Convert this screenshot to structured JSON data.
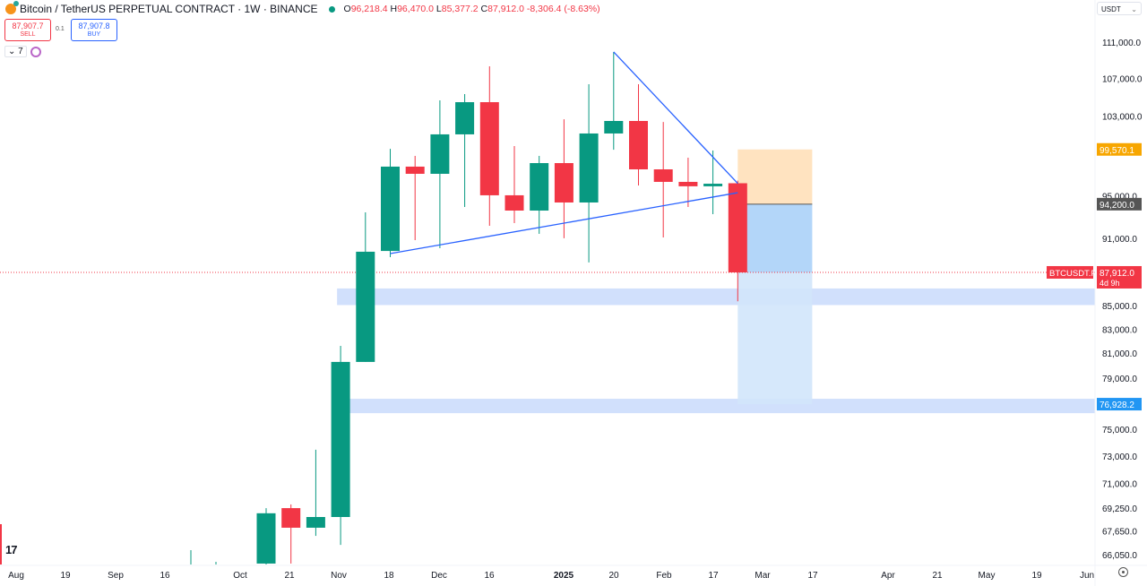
{
  "header": {
    "symbol_title": "Bitcoin / TetherUS PERPETUAL CONTRACT · 1W · BINANCE",
    "ohlc": {
      "o_label": "O",
      "o": "96,218.4",
      "h_label": "H",
      "h": "96,470.0",
      "l_label": "L",
      "l": "85,377.2",
      "c_label": "C",
      "c": "87,912.0",
      "change": "-8,306.4 (-8.63%)"
    },
    "sell_price": "87,907.7",
    "sell_label": "SELL",
    "buy_price": "87,907.8",
    "buy_label": "BUY",
    "spread": "0.1",
    "indicators_count": "7",
    "currency": "USDT"
  },
  "colors": {
    "up": "#089981",
    "down": "#f23645",
    "trendline": "#2962ff",
    "zone": "#c9dafc",
    "target": "#ffe3c0",
    "stop": "#b3d6f9",
    "stop_light": "#d2e6fb"
  },
  "chart_data": {
    "type": "candlestick",
    "symbol": "BTCUSDT.P",
    "interval": "1W",
    "y_scale": "log",
    "ylim": [
      65300,
      112500
    ],
    "y_ticks": [
      "111,000.0",
      "107,000.0",
      "103,000.0",
      "95,000.0",
      "91,000.0",
      "85,000.0",
      "83,000.0",
      "81,000.0",
      "79,000.0",
      "75,000.0",
      "73,000.0",
      "71,000.0",
      "69,250.0",
      "67,650.0",
      "66,050.0"
    ],
    "y_tick_values": [
      111000,
      107000,
      103000,
      95000,
      91000,
      85000,
      83000,
      81000,
      79000,
      75000,
      73000,
      71000,
      69250,
      67650,
      66050
    ],
    "x_ticks": [
      "Aug",
      "19",
      "Sep",
      "16",
      "Oct",
      "21",
      "Nov",
      "18",
      "Dec",
      "16",
      "2025",
      "20",
      "Feb",
      "17",
      "Mar",
      "17",
      "Apr",
      "21",
      "May",
      "19",
      "Jun"
    ],
    "candles": [
      {
        "t": "2024-10-14",
        "o": 65460,
        "h": 69240,
        "l": 65000,
        "c": 68880
      },
      {
        "t": "2024-10-21",
        "o": 69240,
        "h": 69500,
        "l": 65460,
        "c": 67880
      },
      {
        "t": "2024-10-28",
        "o": 67880,
        "h": 73460,
        "l": 67320,
        "c": 68620
      },
      {
        "t": "2024-11-04",
        "o": 68620,
        "h": 81610,
        "l": 66710,
        "c": 80290
      },
      {
        "t": "2024-11-11",
        "o": 80290,
        "h": 93420,
        "l": 80290,
        "c": 89770
      },
      {
        "t": "2024-11-18",
        "o": 89840,
        "h": 99630,
        "l": 89280,
        "c": 97850
      },
      {
        "t": "2024-11-25",
        "o": 97850,
        "h": 98920,
        "l": 90830,
        "c": 97140
      },
      {
        "t": "2024-12-02",
        "o": 97140,
        "h": 104640,
        "l": 90090,
        "c": 101100
      },
      {
        "t": "2024-12-09",
        "o": 101100,
        "h": 105310,
        "l": 93930,
        "c": 104450
      },
      {
        "t": "2024-12-16",
        "o": 104450,
        "h": 108310,
        "l": 92160,
        "c": 95050
      },
      {
        "t": "2024-12-23",
        "o": 95050,
        "h": 99910,
        "l": 92410,
        "c": 93590
      },
      {
        "t": "2024-12-30",
        "o": 93590,
        "h": 98920,
        "l": 91410,
        "c": 98200
      },
      {
        "t": "2025-01-06",
        "o": 98200,
        "h": 102660,
        "l": 91000,
        "c": 94360
      },
      {
        "t": "2025-01-13",
        "o": 94360,
        "h": 106370,
        "l": 88800,
        "c": 101190
      },
      {
        "t": "2025-01-20",
        "o": 101190,
        "h": 109900,
        "l": 99540,
        "c": 102480
      },
      {
        "t": "2025-01-27",
        "o": 102480,
        "h": 106370,
        "l": 96000,
        "c": 97580
      },
      {
        "t": "2025-02-03",
        "o": 97580,
        "h": 102380,
        "l": 91080,
        "c": 96350
      },
      {
        "t": "2025-02-10",
        "o": 96350,
        "h": 98740,
        "l": 93930,
        "c": 95920
      },
      {
        "t": "2025-02-17",
        "o": 95920,
        "h": 99460,
        "l": 93250,
        "c": 96170
      },
      {
        "t": "2025-02-24",
        "o": 96218.4,
        "h": 96470.0,
        "l": 85377.2,
        "c": 87912.0
      }
    ],
    "trendlines": [
      {
        "from": {
          "t": "2024-11-18",
          "p": 89600
        },
        "to": {
          "t": "2025-02-24",
          "p": 95300
        }
      },
      {
        "from": {
          "t": "2025-01-20",
          "p": 109900
        },
        "to": {
          "t": "2025-02-24",
          "p": 96200
        }
      }
    ],
    "zones": [
      {
        "from_t": "2024-11-03",
        "top": 86490,
        "bottom": 85050
      },
      {
        "from_t": "2024-11-06",
        "top": 77350,
        "bottom": 76230
      }
    ],
    "position_tool": {
      "from_t": "2025-02-24",
      "to_t": "2025-03-17",
      "target": 99570.1,
      "entry": 94200.0,
      "stop": 76928.2
    },
    "price_labels": {
      "last": {
        "symbol": "BTCUSDT.P",
        "price": "87,912.0",
        "countdown": "4d 9h",
        "value": 87912.0
      },
      "target": {
        "price": "99,570.1",
        "value": 99570.1,
        "color": "#f7a600"
      },
      "entry": {
        "price": "94,200.0",
        "value": 94200.0,
        "color": "#555555"
      },
      "stop": {
        "price": "76,928.2",
        "value": 76928.2,
        "color": "#2196f3"
      }
    }
  }
}
